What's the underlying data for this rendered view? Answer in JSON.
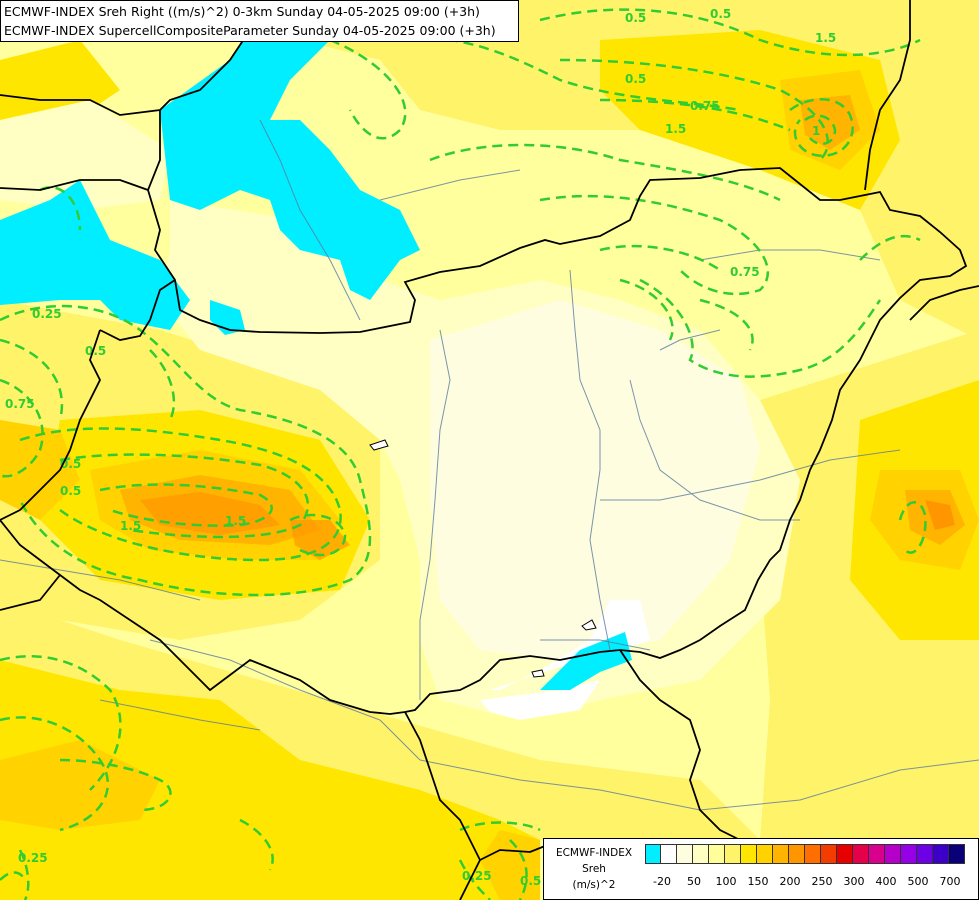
{
  "titles": {
    "line1": "ECMWF-INDEX Sreh Right ((m/s)^2) 0-3km Sunday 04-05-2025 09:00 (+3h)",
    "line2": "ECMWF-INDEX SupercellCompositeParameter Sunday 04-05-2025 09:00 (+3h)"
  },
  "legend": {
    "title_lines": [
      "ECMWF-INDEX",
      "Sreh",
      "(m/s)^2"
    ],
    "colors": [
      "#00eeff",
      "#ffffff",
      "#fffde0",
      "#ffffc4",
      "#fffe99",
      "#fff36a",
      "#ffe600",
      "#ffd200",
      "#ffb400",
      "#ff9600",
      "#ff6e00",
      "#f53c00",
      "#e60000",
      "#e6004b",
      "#d8008c",
      "#b400c8",
      "#9600e6",
      "#6e00e6",
      "#3c00c8",
      "#0a0078"
    ],
    "ticks": [
      "-20",
      "50",
      "100",
      "150",
      "200",
      "250",
      "300",
      "400",
      "500",
      "700"
    ]
  },
  "contour_labels": [
    "0.5",
    "0.5",
    "1.5",
    "1.5",
    "0.5",
    "0.75",
    "1.5",
    "1",
    "0.5",
    "0.25",
    "0.5",
    "0.75",
    "0.5",
    "1.5",
    "0.75",
    "0.25",
    "0.25",
    "0.5"
  ],
  "layers": {
    "shading": "Sreh 0-3km, yellow/orange fill",
    "contours": "SCP dashed green lines",
    "borders": "black country borders",
    "rivers": "thin blue-grey rivers"
  }
}
